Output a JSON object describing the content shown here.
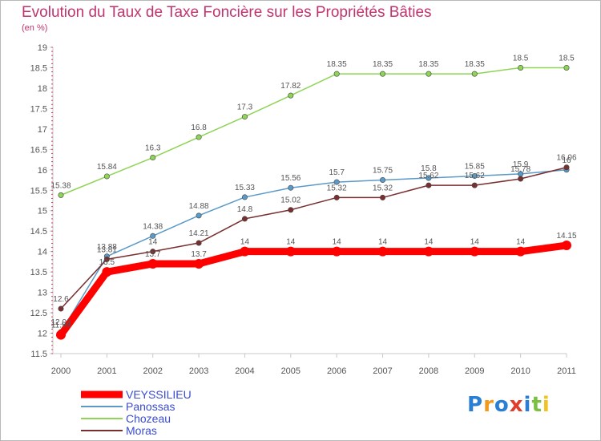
{
  "title": "Evolution du Taux de Taxe Foncière sur les Propriétés Bâties",
  "unit": "(en %)",
  "logo": {
    "text": "Proxiti",
    "letter_colors": [
      "#2a7fd4",
      "#f39a1c",
      "#2a7fd4",
      "#e23d2b",
      "#2a7fd4",
      "#7ac143",
      "#f3c21c"
    ]
  },
  "chart_data": {
    "type": "line",
    "title": "Evolution du Taux de Taxe Foncière sur les Propriétés Bâties",
    "ylabel": "(en %)",
    "xlabel": "",
    "categories": [
      "2000",
      "2001",
      "2002",
      "2003",
      "2004",
      "2005",
      "2006",
      "2007",
      "2008",
      "2009",
      "2010",
      "2011"
    ],
    "ylim": [
      11.5,
      19
    ],
    "yticks": [
      "11.5",
      "12",
      "12.5",
      "13",
      "13.5",
      "14",
      "14.5",
      "15",
      "15.5",
      "16",
      "16.5",
      "17",
      "17.5",
      "18",
      "18.5",
      "19"
    ],
    "grid": false,
    "legend_position": "bottom-left",
    "series": [
      {
        "name": "VEYSSILIEU",
        "color": "#ff0000",
        "emphasis": true,
        "values": [
          11.96,
          13.5,
          13.7,
          13.7,
          14,
          14,
          14,
          14,
          14,
          14,
          14,
          14.15
        ],
        "labels": [
          "11.96",
          "13.5",
          "13.7",
          "13.7",
          "14",
          "14",
          "14",
          "14",
          "14",
          "14",
          "14",
          "14.15"
        ]
      },
      {
        "name": "Panossas",
        "color": "#5b9ac8",
        "emphasis": false,
        "values": [
          12.03,
          13.88,
          14.38,
          14.88,
          15.33,
          15.56,
          15.7,
          15.75,
          15.8,
          15.85,
          15.9,
          16
        ],
        "labels": [
          "12.03",
          "13.88",
          "14.38",
          "14.88",
          "15.33",
          "15.56",
          "15.7",
          "15.75",
          "15.8",
          "15.85",
          "15.9",
          "16"
        ]
      },
      {
        "name": "Chozeau",
        "color": "#8ed456",
        "emphasis": false,
        "values": [
          15.38,
          15.84,
          16.3,
          16.8,
          17.3,
          17.82,
          18.35,
          18.35,
          18.35,
          18.35,
          18.5,
          18.5
        ],
        "labels": [
          "15.38",
          "15.84",
          "16.3",
          "16.8",
          "17.3",
          "17.82",
          "18.35",
          "18.35",
          "18.35",
          "18.35",
          "18.5",
          "18.5"
        ]
      },
      {
        "name": "Moras",
        "color": "#7a2f2f",
        "emphasis": false,
        "values": [
          12.6,
          13.81,
          14,
          14.21,
          14.8,
          15.02,
          15.32,
          15.32,
          15.62,
          15.62,
          15.78,
          16.06
        ],
        "labels": [
          "12.6",
          "13.81",
          "14",
          "14.21",
          "14.8",
          "15.02",
          "15.32",
          "15.32",
          "15.62",
          "15.62",
          "15.78",
          "16.06"
        ]
      }
    ]
  }
}
